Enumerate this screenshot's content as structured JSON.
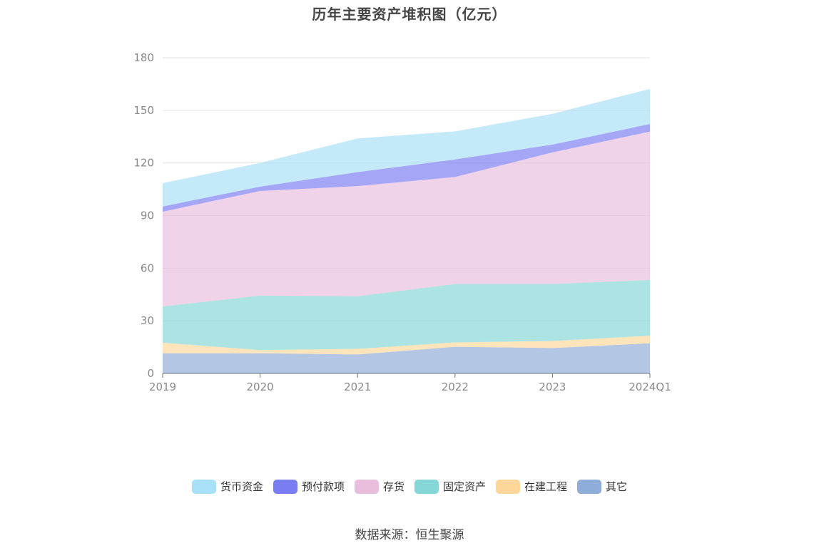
{
  "page": {
    "title": "历年主要资产堆积图（亿元）",
    "source": "数据来源：恒生聚源"
  },
  "chart_data": {
    "type": "area",
    "stacked": true,
    "title": "历年主要资产堆积图（亿元）",
    "categories": [
      "2019",
      "2020",
      "2021",
      "2022",
      "2023",
      "2024Q1"
    ],
    "ylim": [
      0,
      180
    ],
    "yticks": [
      0,
      30,
      60,
      90,
      120,
      150,
      180
    ],
    "grid": true,
    "legend_position": "bottom",
    "series": [
      {
        "name": "其它",
        "color": "#8fadd9",
        "values": [
          11.5,
          11.5,
          10.8,
          15.2,
          14.5,
          17.2
        ]
      },
      {
        "name": "在建工程",
        "color": "#fdd79a",
        "values": [
          6.0,
          1.8,
          3.2,
          2.5,
          4.0,
          4.3
        ]
      },
      {
        "name": "固定资产",
        "color": "#85d6d6",
        "values": [
          20.7,
          31.1,
          30.0,
          33.3,
          32.5,
          31.8
        ]
      },
      {
        "name": "存货",
        "color": "#e9bedd",
        "values": [
          54.0,
          59.6,
          62.8,
          61.0,
          75.0,
          84.6
        ]
      },
      {
        "name": "预付款项",
        "color": "#7a7cf2",
        "values": [
          3.0,
          2.5,
          8.0,
          10.0,
          4.5,
          4.3
        ]
      },
      {
        "name": "货币资金",
        "color": "#a8e0f8",
        "values": [
          13.3,
          13.5,
          19.2,
          16.0,
          17.5,
          20.0
        ]
      }
    ]
  }
}
